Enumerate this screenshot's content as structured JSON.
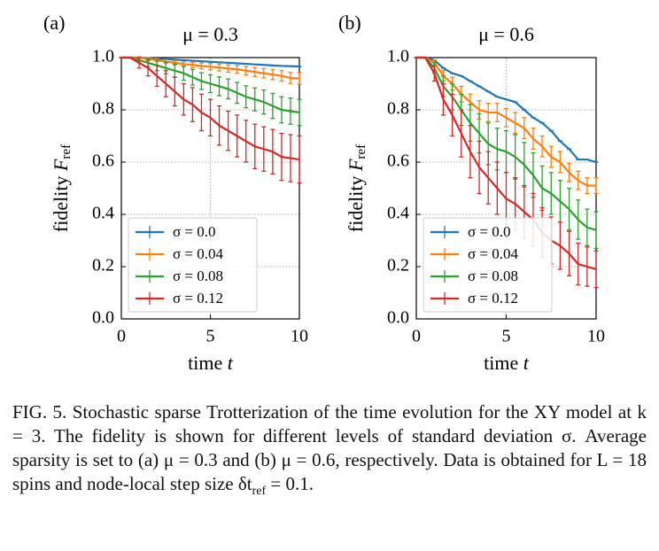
{
  "chart_data": [
    {
      "type": "line",
      "panel": "(a)",
      "title": "μ = 0.3",
      "ylabel": "fidelity ",
      "ylabel_symbol": "F",
      "ylabel_subscript": "ref",
      "xlabel": "time ",
      "xlabel_symbol": "t",
      "x": [
        0,
        0.5,
        1,
        1.5,
        2,
        2.5,
        3,
        3.5,
        4,
        4.5,
        5,
        5.5,
        6,
        6.5,
        7,
        7.5,
        8,
        8.5,
        9,
        9.5,
        10
      ],
      "xlim": [
        0,
        10
      ],
      "xticks": [
        0,
        5,
        10
      ],
      "ylim": [
        0,
        1.0
      ],
      "yticks": [
        {
          "value": 0,
          "label": "0.0"
        },
        0.2,
        0.4,
        0.6,
        0.8,
        {
          "value": 1,
          "label": "1.0"
        }
      ],
      "grid": true,
      "legend": "lower left",
      "series": [
        {
          "name": "σ = 0.0",
          "color": "#1f77b4",
          "values": [
            1,
            1,
            1,
            0.998,
            0.996,
            0.994,
            0.992,
            0.99,
            0.988,
            0.986,
            0.984,
            0.982,
            0.98,
            0.978,
            0.976,
            0.974,
            0.972,
            0.97,
            0.968,
            0.967,
            0.966
          ],
          "errors": [
            0,
            0,
            0,
            0,
            0,
            0,
            0,
            0,
            0,
            0,
            0,
            0,
            0,
            0,
            0,
            0,
            0,
            0,
            0,
            0,
            0
          ]
        },
        {
          "name": "σ = 0.04",
          "color": "#ff7f0e",
          "values": [
            1,
            1,
            1,
            0.995,
            0.99,
            0.985,
            0.98,
            0.975,
            0.972,
            0.968,
            0.965,
            0.962,
            0.958,
            0.955,
            0.95,
            0.945,
            0.94,
            0.935,
            0.93,
            0.922,
            0.92
          ],
          "errors": [
            0,
            0,
            0.003,
            0.005,
            0.006,
            0.007,
            0.008,
            0.009,
            0.01,
            0.011,
            0.012,
            0.013,
            0.014,
            0.015,
            0.016,
            0.017,
            0.018,
            0.019,
            0.02,
            0.021,
            0.022
          ]
        },
        {
          "name": "σ = 0.08",
          "color": "#2ca02c",
          "values": [
            1,
            1,
            0.99,
            0.98,
            0.97,
            0.96,
            0.95,
            0.94,
            0.925,
            0.91,
            0.9,
            0.89,
            0.88,
            0.865,
            0.85,
            0.84,
            0.83,
            0.815,
            0.8,
            0.795,
            0.79
          ],
          "errors": [
            0,
            0,
            0.01,
            0.015,
            0.02,
            0.022,
            0.025,
            0.027,
            0.03,
            0.032,
            0.034,
            0.036,
            0.038,
            0.04,
            0.042,
            0.044,
            0.046,
            0.048,
            0.05,
            0.05,
            0.05
          ]
        },
        {
          "name": "σ = 0.12",
          "color": "#d62728",
          "values": [
            1,
            1,
            0.98,
            0.96,
            0.93,
            0.9,
            0.87,
            0.84,
            0.82,
            0.79,
            0.77,
            0.74,
            0.72,
            0.7,
            0.68,
            0.66,
            0.65,
            0.64,
            0.62,
            0.615,
            0.61
          ],
          "errors": [
            0,
            0,
            0.02,
            0.03,
            0.04,
            0.05,
            0.055,
            0.06,
            0.065,
            0.07,
            0.07,
            0.075,
            0.075,
            0.08,
            0.08,
            0.085,
            0.085,
            0.085,
            0.09,
            0.09,
            0.09
          ]
        }
      ]
    },
    {
      "type": "line",
      "panel": "(b)",
      "title": "μ = 0.6",
      "ylabel": "fidelity ",
      "ylabel_symbol": "F",
      "ylabel_subscript": "ref",
      "xlabel": "time ",
      "xlabel_symbol": "t",
      "x": [
        0,
        0.5,
        1,
        1.5,
        2,
        2.5,
        3,
        3.5,
        4,
        4.5,
        5,
        5.5,
        6,
        6.5,
        7,
        7.5,
        8,
        8.5,
        9,
        9.5,
        10
      ],
      "xlim": [
        0,
        10
      ],
      "xticks": [
        0,
        5,
        10
      ],
      "ylim": [
        0,
        1.0
      ],
      "yticks": [
        {
          "value": 0,
          "label": "0.0"
        },
        0.2,
        0.4,
        0.6,
        0.8,
        {
          "value": 1,
          "label": "1.0"
        }
      ],
      "grid": true,
      "legend": "lower left",
      "series": [
        {
          "name": "σ = 0.0",
          "color": "#1f77b4",
          "values": [
            1,
            1,
            0.99,
            0.96,
            0.94,
            0.93,
            0.91,
            0.89,
            0.87,
            0.85,
            0.84,
            0.83,
            0.8,
            0.77,
            0.75,
            0.72,
            0.68,
            0.65,
            0.61,
            0.61,
            0.6
          ],
          "errors": [
            0,
            0,
            0,
            0,
            0,
            0,
            0,
            0,
            0,
            0,
            0,
            0,
            0,
            0,
            0,
            0,
            0,
            0,
            0,
            0,
            0
          ]
        },
        {
          "name": "σ = 0.04",
          "color": "#ff7f0e",
          "values": [
            1,
            1,
            0.98,
            0.93,
            0.9,
            0.86,
            0.83,
            0.8,
            0.79,
            0.79,
            0.77,
            0.75,
            0.73,
            0.69,
            0.66,
            0.62,
            0.6,
            0.56,
            0.53,
            0.51,
            0.51
          ],
          "errors": [
            0,
            0,
            0.01,
            0.02,
            0.025,
            0.03,
            0.03,
            0.035,
            0.035,
            0.035,
            0.035,
            0.04,
            0.04,
            0.04,
            0.04,
            0.04,
            0.04,
            0.035,
            0.035,
            0.03,
            0.03
          ]
        },
        {
          "name": "σ = 0.08",
          "color": "#2ca02c",
          "values": [
            1,
            1,
            0.96,
            0.89,
            0.85,
            0.8,
            0.75,
            0.71,
            0.67,
            0.65,
            0.64,
            0.62,
            0.59,
            0.55,
            0.5,
            0.48,
            0.45,
            0.42,
            0.38,
            0.35,
            0.34
          ],
          "errors": [
            0,
            0,
            0.02,
            0.04,
            0.05,
            0.06,
            0.07,
            0.075,
            0.08,
            0.08,
            0.08,
            0.085,
            0.085,
            0.085,
            0.085,
            0.08,
            0.08,
            0.08,
            0.075,
            0.07,
            0.07
          ]
        },
        {
          "name": "σ = 0.12",
          "color": "#d62728",
          "values": [
            1,
            1,
            0.94,
            0.84,
            0.78,
            0.71,
            0.64,
            0.58,
            0.54,
            0.5,
            0.46,
            0.44,
            0.41,
            0.38,
            0.33,
            0.3,
            0.28,
            0.25,
            0.21,
            0.2,
            0.19
          ],
          "errors": [
            0,
            0,
            0.03,
            0.06,
            0.08,
            0.09,
            0.1,
            0.1,
            0.1,
            0.1,
            0.1,
            0.1,
            0.1,
            0.1,
            0.095,
            0.09,
            0.09,
            0.085,
            0.08,
            0.075,
            0.07
          ]
        }
      ]
    }
  ],
  "caption": [
    "FIG. 5.",
    "  Stochastic sparse Trotterization of the time evolution for the XY model at k = 3.  The fidelity is shown for different levels of standard deviation σ.  Average sparsity is set to (a) μ = 0.3 and (b) μ = 0.6, respectively. Data is obtained for L = 18 spins and node-local step size δt",
    "ref",
    " = 0.1."
  ]
}
